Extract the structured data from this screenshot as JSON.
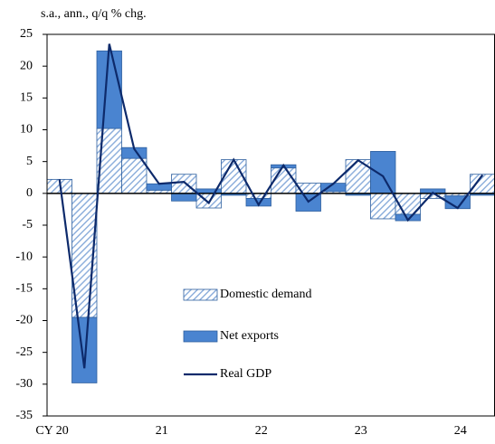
{
  "chart_data": {
    "type": "bar_line",
    "subtitle": "s.a., ann., q/q % chg.",
    "categories": [
      "CY 20",
      null,
      null,
      null,
      "21",
      null,
      null,
      null,
      "22",
      null,
      null,
      null,
      "23",
      null,
      null,
      null,
      "24",
      null
    ],
    "series": [
      {
        "name": "Domestic demand",
        "kind": "bar",
        "color": "#4a84d0",
        "values": [
          2.2,
          -19.5,
          10.2,
          5.5,
          0.5,
          3.0,
          -2.3,
          5.3,
          -0.8,
          4.0,
          1.6,
          0.3,
          5.3,
          -4.0,
          -3.3,
          -0.8,
          -0.4,
          3.0
        ]
      },
      {
        "name": "Net exports",
        "kind": "bar",
        "color": "#4a84d0",
        "values": [
          0,
          -10.3,
          12.2,
          1.7,
          1.0,
          -1.2,
          0.7,
          -0.3,
          -1.2,
          0.5,
          -2.8,
          1.3,
          -0.3,
          6.6,
          -1.0,
          0.7,
          -2.0,
          -0.3
        ]
      },
      {
        "name": "Real GDP",
        "kind": "line",
        "color": "#0d2a6b",
        "values": [
          2.2,
          -27.5,
          23.5,
          7.0,
          1.5,
          1.8,
          -1.5,
          5.3,
          -1.8,
          4.4,
          -1.3,
          1.5,
          5.2,
          2.7,
          -4.2,
          0.1,
          -2.3,
          2.9
        ]
      }
    ],
    "ylim": [
      -35,
      25
    ],
    "yticks": [
      -35,
      -30,
      -25,
      -20,
      -15,
      -10,
      -5,
      0,
      5,
      10,
      15,
      20,
      25
    ]
  }
}
